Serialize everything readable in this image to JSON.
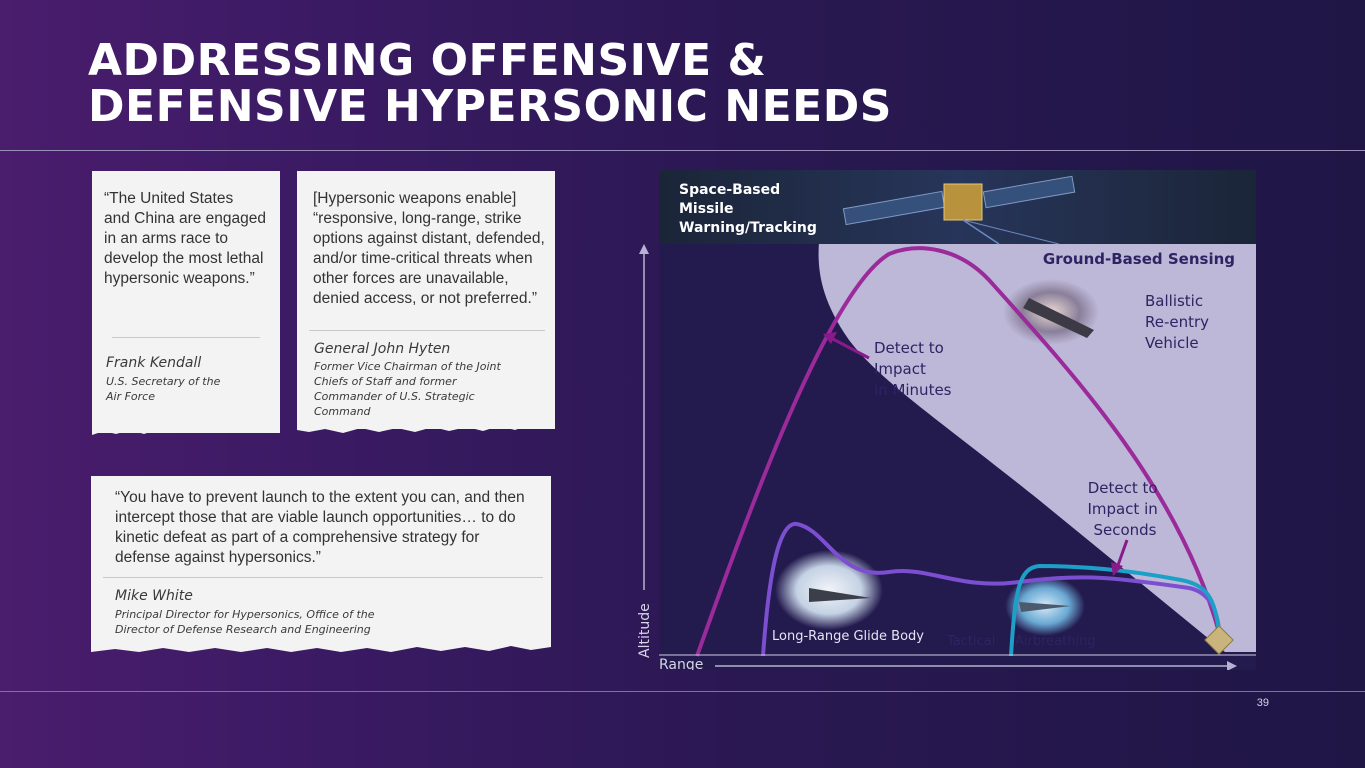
{
  "slide": {
    "title_line1": "ADDRESSING OFFENSIVE &",
    "title_line2": "DEFENSIVE HYPERSONIC NEEDS",
    "page_number": "39"
  },
  "quotes": [
    {
      "text_lines": [
        "“The United States",
        "and China are engaged",
        "in an arms race to",
        "develop the most lethal",
        "hypersonic weapons.”"
      ],
      "name": "Frank Kendall",
      "role_lines": [
        "U.S. Secretary of the",
        "Air Force"
      ]
    },
    {
      "text_lines": [
        "[Hypersonic weapons enable]",
        "“responsive, long-range, strike",
        "options against distant, defended,",
        "and/or time-critical threats when",
        "other forces are unavailable,",
        "denied access, or not preferred.”"
      ],
      "name": "General John Hyten",
      "role_lines": [
        "Former Vice Chairman of the Joint",
        "Chiefs of Staff and former",
        "Commander of U.S. Strategic",
        "Command"
      ]
    },
    {
      "text_lines": [
        "“You have to prevent launch to the extent you can, and then",
        "intercept those that are viable launch opportunities… to do",
        "kinetic defeat as part of a comprehensive strategy for",
        "defense against hypersonics.”"
      ],
      "name": "Mike White",
      "role_lines": [
        "Principal Director for Hypersonics, Office of the",
        "Director of Defense Research and Engineering"
      ]
    }
  ],
  "diagram": {
    "space_label_lines": [
      "Space-Based",
      "Missile",
      "Warning/Tracking"
    ],
    "ground_label": "Ground-Based Sensing",
    "brv_label_lines": [
      "Ballistic",
      "Re-entry",
      "Vehicle"
    ],
    "detect_minutes_lines": [
      "Detect to",
      "Impact",
      "in Minutes"
    ],
    "detect_seconds_lines": [
      "Detect to",
      "Impact in",
      "Seconds"
    ],
    "glide_label": "Long-Range Glide Body",
    "tactical_label": "Tactical",
    "airbreathing_label": "Airbreathing",
    "y_axis_label": "Altitude",
    "x_axis_label": "Range",
    "colors": {
      "ballistic": "#9b2a9b",
      "glide": "#7b4fd0",
      "airbreathing": "#1da0c8",
      "ground_zone": "#bdb8d8",
      "background": "#231a4e"
    }
  }
}
